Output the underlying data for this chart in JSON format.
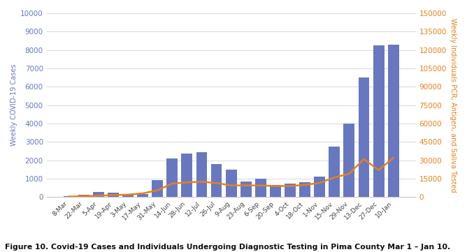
{
  "categories": [
    "8-Mar",
    "22-Mar",
    "5-Apr",
    "19-Apr",
    "3-May",
    "17-May",
    "31-May",
    "14-Jun",
    "28-Jun",
    "12-Jul",
    "26-Jul",
    "9-Aug",
    "23-Aug",
    "6-Sep",
    "20-Sep",
    "4-Oct",
    "18-Oct",
    "1-Nov",
    "15-Nov",
    "29-Nov",
    "13-Dec",
    "27-Dec",
    "10-Jan"
  ],
  "bar_values": [
    45,
    110,
    270,
    240,
    180,
    170,
    920,
    2100,
    2350,
    2450,
    1800,
    1480,
    850,
    1000,
    650,
    720,
    790,
    1100,
    2750,
    4000,
    6500,
    8250,
    8300
  ],
  "line_values": [
    400,
    700,
    1100,
    1600,
    2000,
    3000,
    5500,
    11000,
    12000,
    12500,
    11500,
    9500,
    9500,
    9500,
    9000,
    9000,
    10000,
    11500,
    16000,
    19000,
    31000,
    22000,
    32000
  ],
  "bar_color": "#6878c0",
  "line_color": "#e8801a",
  "left_ylabel": "Weekly COVID-19 Cases",
  "right_ylabel": "Weekly Individuals PCR, Antigen, and Saliva Tested",
  "left_ylim": [
    0,
    10000
  ],
  "right_ylim": [
    0,
    150000
  ],
  "left_yticks": [
    0,
    1000,
    2000,
    3000,
    4000,
    5000,
    6000,
    7000,
    8000,
    9000,
    10000
  ],
  "right_yticks": [
    0,
    15000,
    30000,
    45000,
    60000,
    75000,
    90000,
    105000,
    120000,
    135000,
    150000
  ],
  "caption": "Figure 10. Covid-19 Cases and Individuals Undergoing Diagnostic Testing in Pima County Mar 1 – Jan 10.",
  "bg_color": "#ffffff",
  "grid_color": "#d8d8d8",
  "left_label_color": "#6878c0",
  "right_label_color": "#e8801a",
  "tick_label_color_left": "#6878c0",
  "tick_label_color_right": "#e8801a"
}
